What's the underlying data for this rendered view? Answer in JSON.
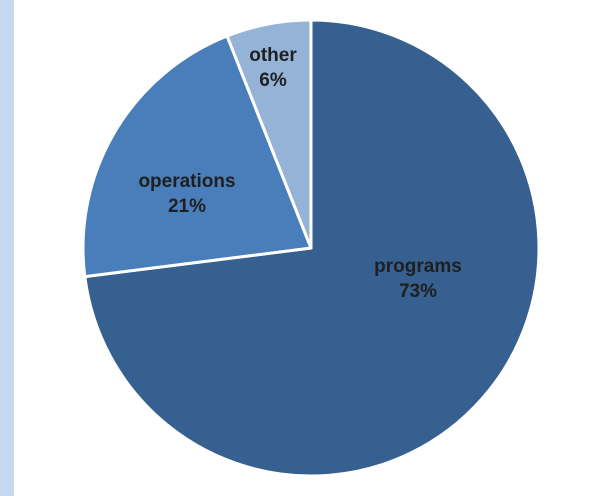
{
  "colors": {
    "side_band": "#c6d9f1",
    "background": "#ffffff",
    "slice_border": "#ffffff",
    "label_text": "#1f1f1f"
  },
  "chart_data": {
    "type": "pie",
    "title": "",
    "start_angle_deg": 0,
    "direction": "clockwise",
    "legend": "none",
    "slices": [
      {
        "label": "programs",
        "value": 73,
        "value_label": "73%",
        "color": "#36608f"
      },
      {
        "label": "operations",
        "value": 21,
        "value_label": "21%",
        "color": "#4a7ebb"
      },
      {
        "label": "other",
        "value": 6,
        "value_label": "6%",
        "color": "#95b3d7"
      }
    ]
  }
}
